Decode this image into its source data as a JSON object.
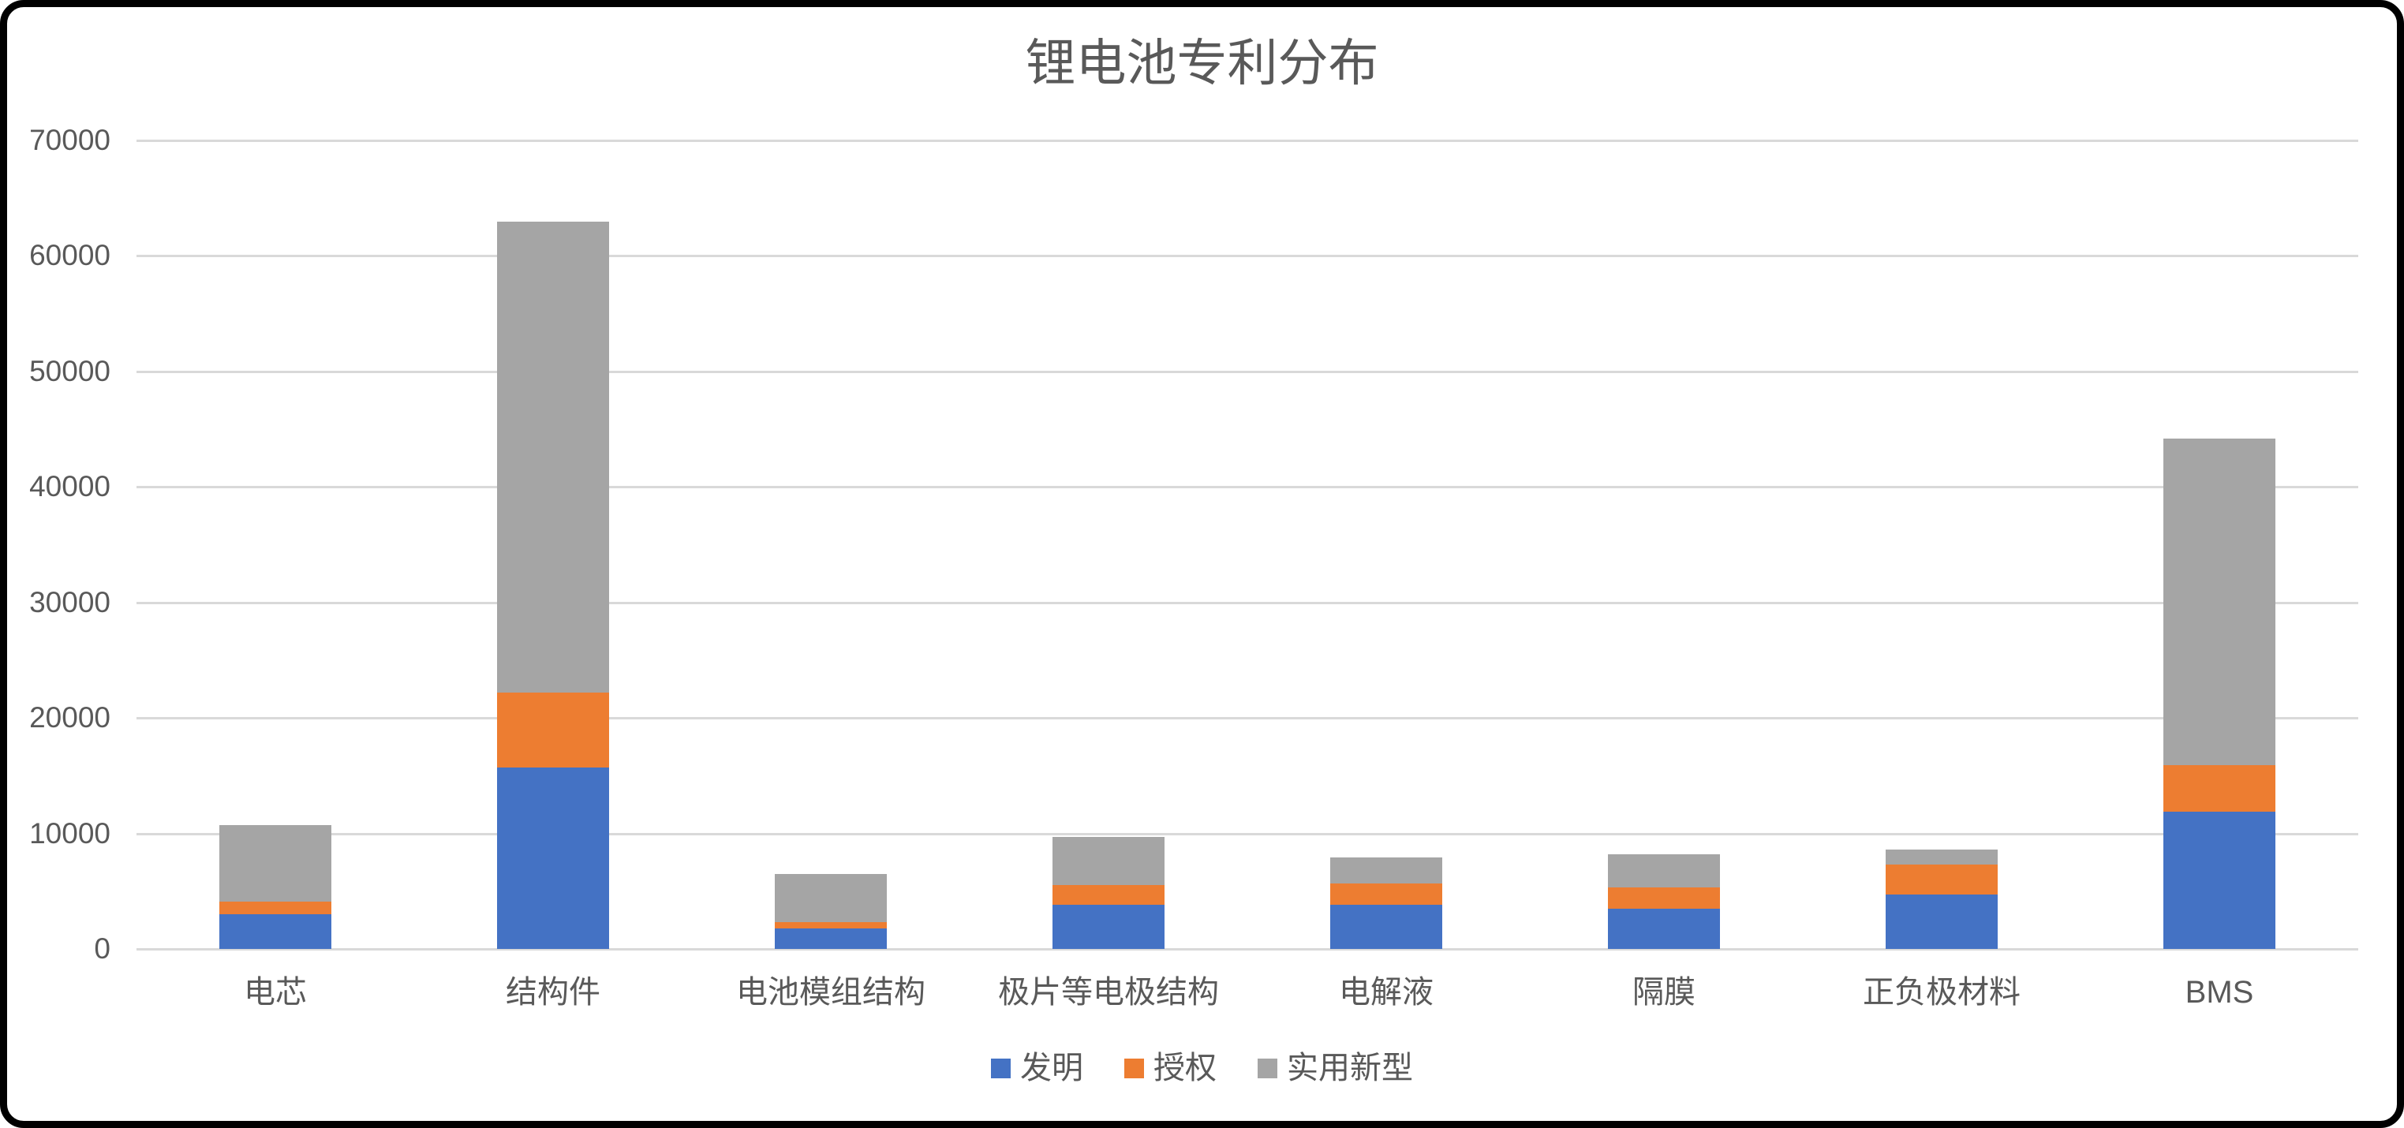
{
  "frame": {
    "border_color": "#000000",
    "background_color": "#ffffff"
  },
  "text_color": "#595959",
  "gridline_color": "#D9D9D9",
  "chart_data": {
    "type": "bar",
    "stacked": true,
    "title": "锂电池专利分布",
    "categories": [
      "电芯",
      "结构件",
      "电池模组结构",
      "极片等电极结构",
      "电解液",
      "隔膜",
      "正负极材料",
      "BMS"
    ],
    "series": [
      {
        "name": "发明",
        "color": "#4472C4",
        "values": [
          3000,
          15700,
          1800,
          3800,
          3800,
          3500,
          4700,
          11900
        ]
      },
      {
        "name": "授权",
        "color": "#ED7D31",
        "values": [
          1100,
          6500,
          500,
          1700,
          1900,
          1800,
          2600,
          4000
        ]
      },
      {
        "name": "实用新型",
        "color": "#A5A5A5",
        "values": [
          6600,
          40800,
          4200,
          4200,
          2200,
          2900,
          1300,
          28300
        ]
      }
    ],
    "totals": [
      10700,
      63000,
      6500,
      9700,
      7900,
      8200,
      8600,
      44200
    ],
    "xlabel": "",
    "ylabel": "",
    "ylim": [
      0,
      70000
    ],
    "ytick_step": 10000,
    "ytick_labels": [
      "0",
      "10000",
      "20000",
      "30000",
      "40000",
      "50000",
      "60000",
      "70000"
    ],
    "grid": "horizontal",
    "legend_position": "bottom"
  }
}
